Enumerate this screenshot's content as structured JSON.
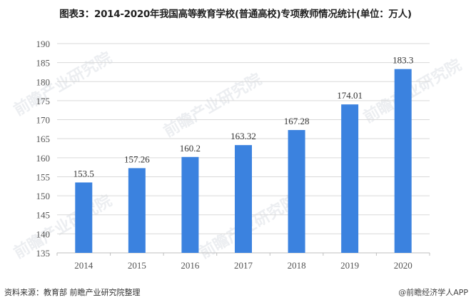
{
  "title": "图表3：2014-2020年我国高等教育学校(普通高校)专项教师情况统计(单位：万人)",
  "footer": {
    "source": "资料来源：教育部 前瞻产业研究院整理",
    "credit": "@前瞻经济学人APP"
  },
  "watermark": "前瞻产业研究院",
  "colors": {
    "bar": "#3b82df",
    "grid": "#d9d9d9",
    "axis_text": "#555555"
  },
  "chart_data": {
    "type": "bar",
    "title": "图表3：2014-2020年我国高等教育学校(普通高校)专项教师情况统计(单位：万人)",
    "categories": [
      "2014",
      "2015",
      "2016",
      "2017",
      "2018",
      "2019",
      "2020"
    ],
    "values": [
      153.5,
      157.26,
      160.2,
      163.32,
      167.28,
      174.01,
      183.3
    ],
    "labels": [
      "153.5",
      "157.26",
      "160.2",
      "163.32",
      "167.28",
      "174.01",
      "183.3"
    ],
    "xlabel": "",
    "ylabel": "",
    "ylim": [
      135,
      190
    ],
    "yticks": [
      "135",
      "140",
      "145",
      "150",
      "155",
      "160",
      "165",
      "170",
      "175",
      "180",
      "185",
      "190"
    ],
    "grid": true,
    "legend": "none",
    "unit": "万人"
  }
}
